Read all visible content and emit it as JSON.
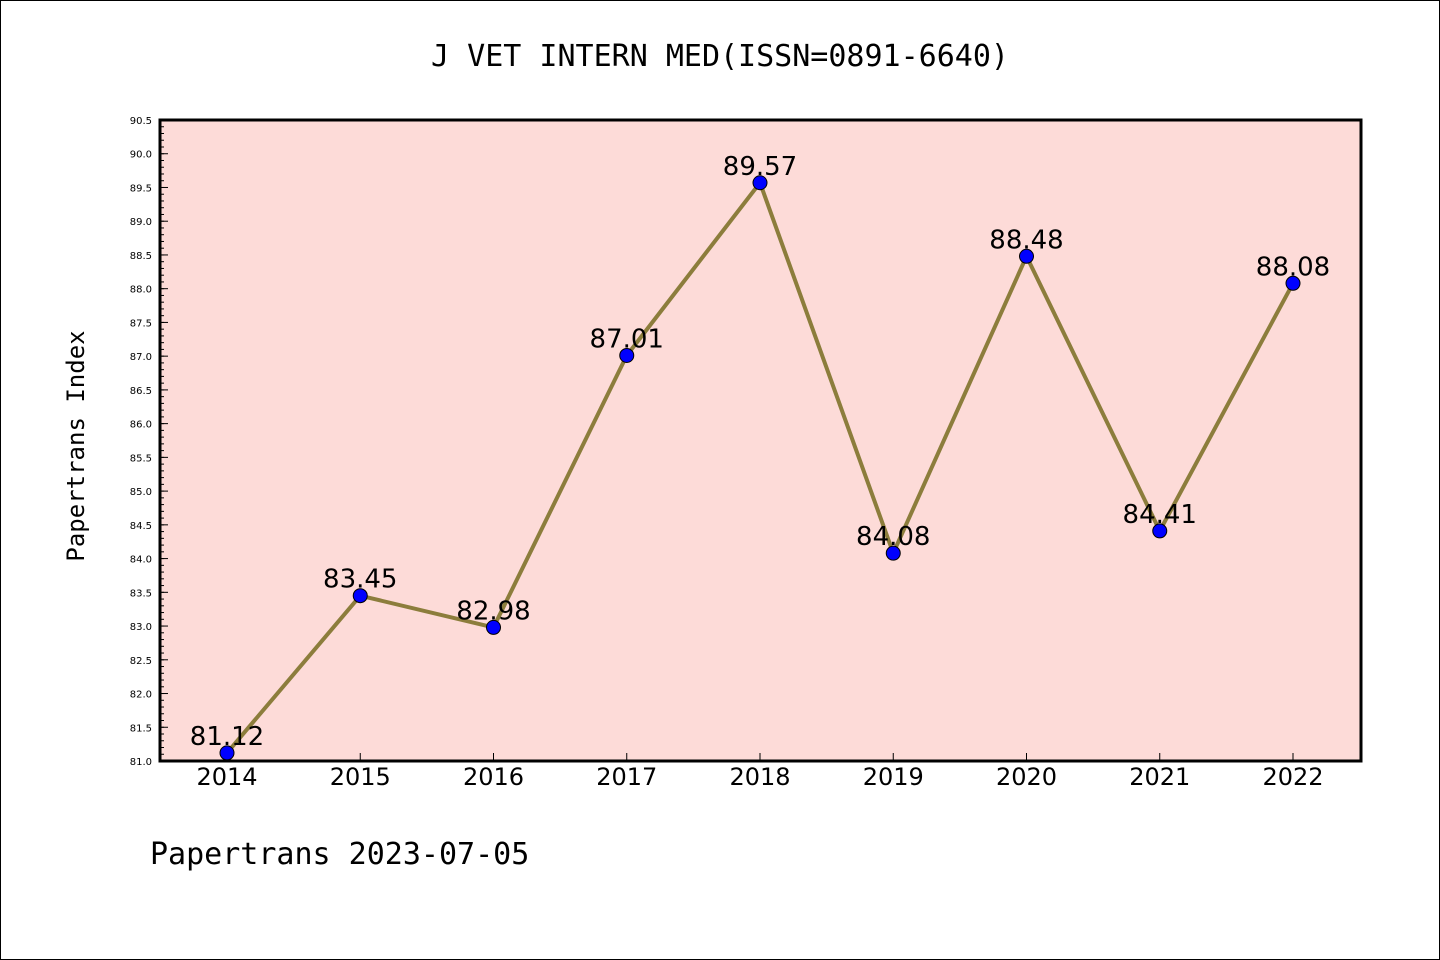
{
  "chart_data": {
    "type": "line",
    "title": "J VET INTERN MED(ISSN=0891-6640)",
    "xlabel": "",
    "ylabel": "Papertrans Index",
    "footer": "Papertrans 2023-07-05",
    "categories": [
      "2014",
      "2015",
      "2016",
      "2017",
      "2018",
      "2019",
      "2020",
      "2021",
      "2022"
    ],
    "series": [
      {
        "values": [
          81.12,
          83.45,
          82.98,
          87.01,
          89.57,
          84.08,
          88.48,
          84.41,
          88.08
        ],
        "data_labels": [
          "81.12",
          "83.45",
          "82.98",
          "87.01",
          "89.57",
          "84.08",
          "88.48",
          "84.41",
          "88.08"
        ]
      }
    ],
    "ylim": [
      81.0,
      90.5
    ],
    "yticks": [
      "81.0",
      "81.5",
      "82.0",
      "82.5",
      "83.0",
      "83.5",
      "84.0",
      "84.5",
      "85.0",
      "85.5",
      "86.0",
      "86.5",
      "87.0",
      "87.5",
      "88.0",
      "88.5",
      "89.0",
      "89.5",
      "90.0",
      "90.5"
    ],
    "grid": false,
    "legend": "none",
    "colors": {
      "plot_background": "#fddbd8",
      "line": "#8c7d3c",
      "marker": "#0000ff",
      "axes": "#000000"
    }
  }
}
